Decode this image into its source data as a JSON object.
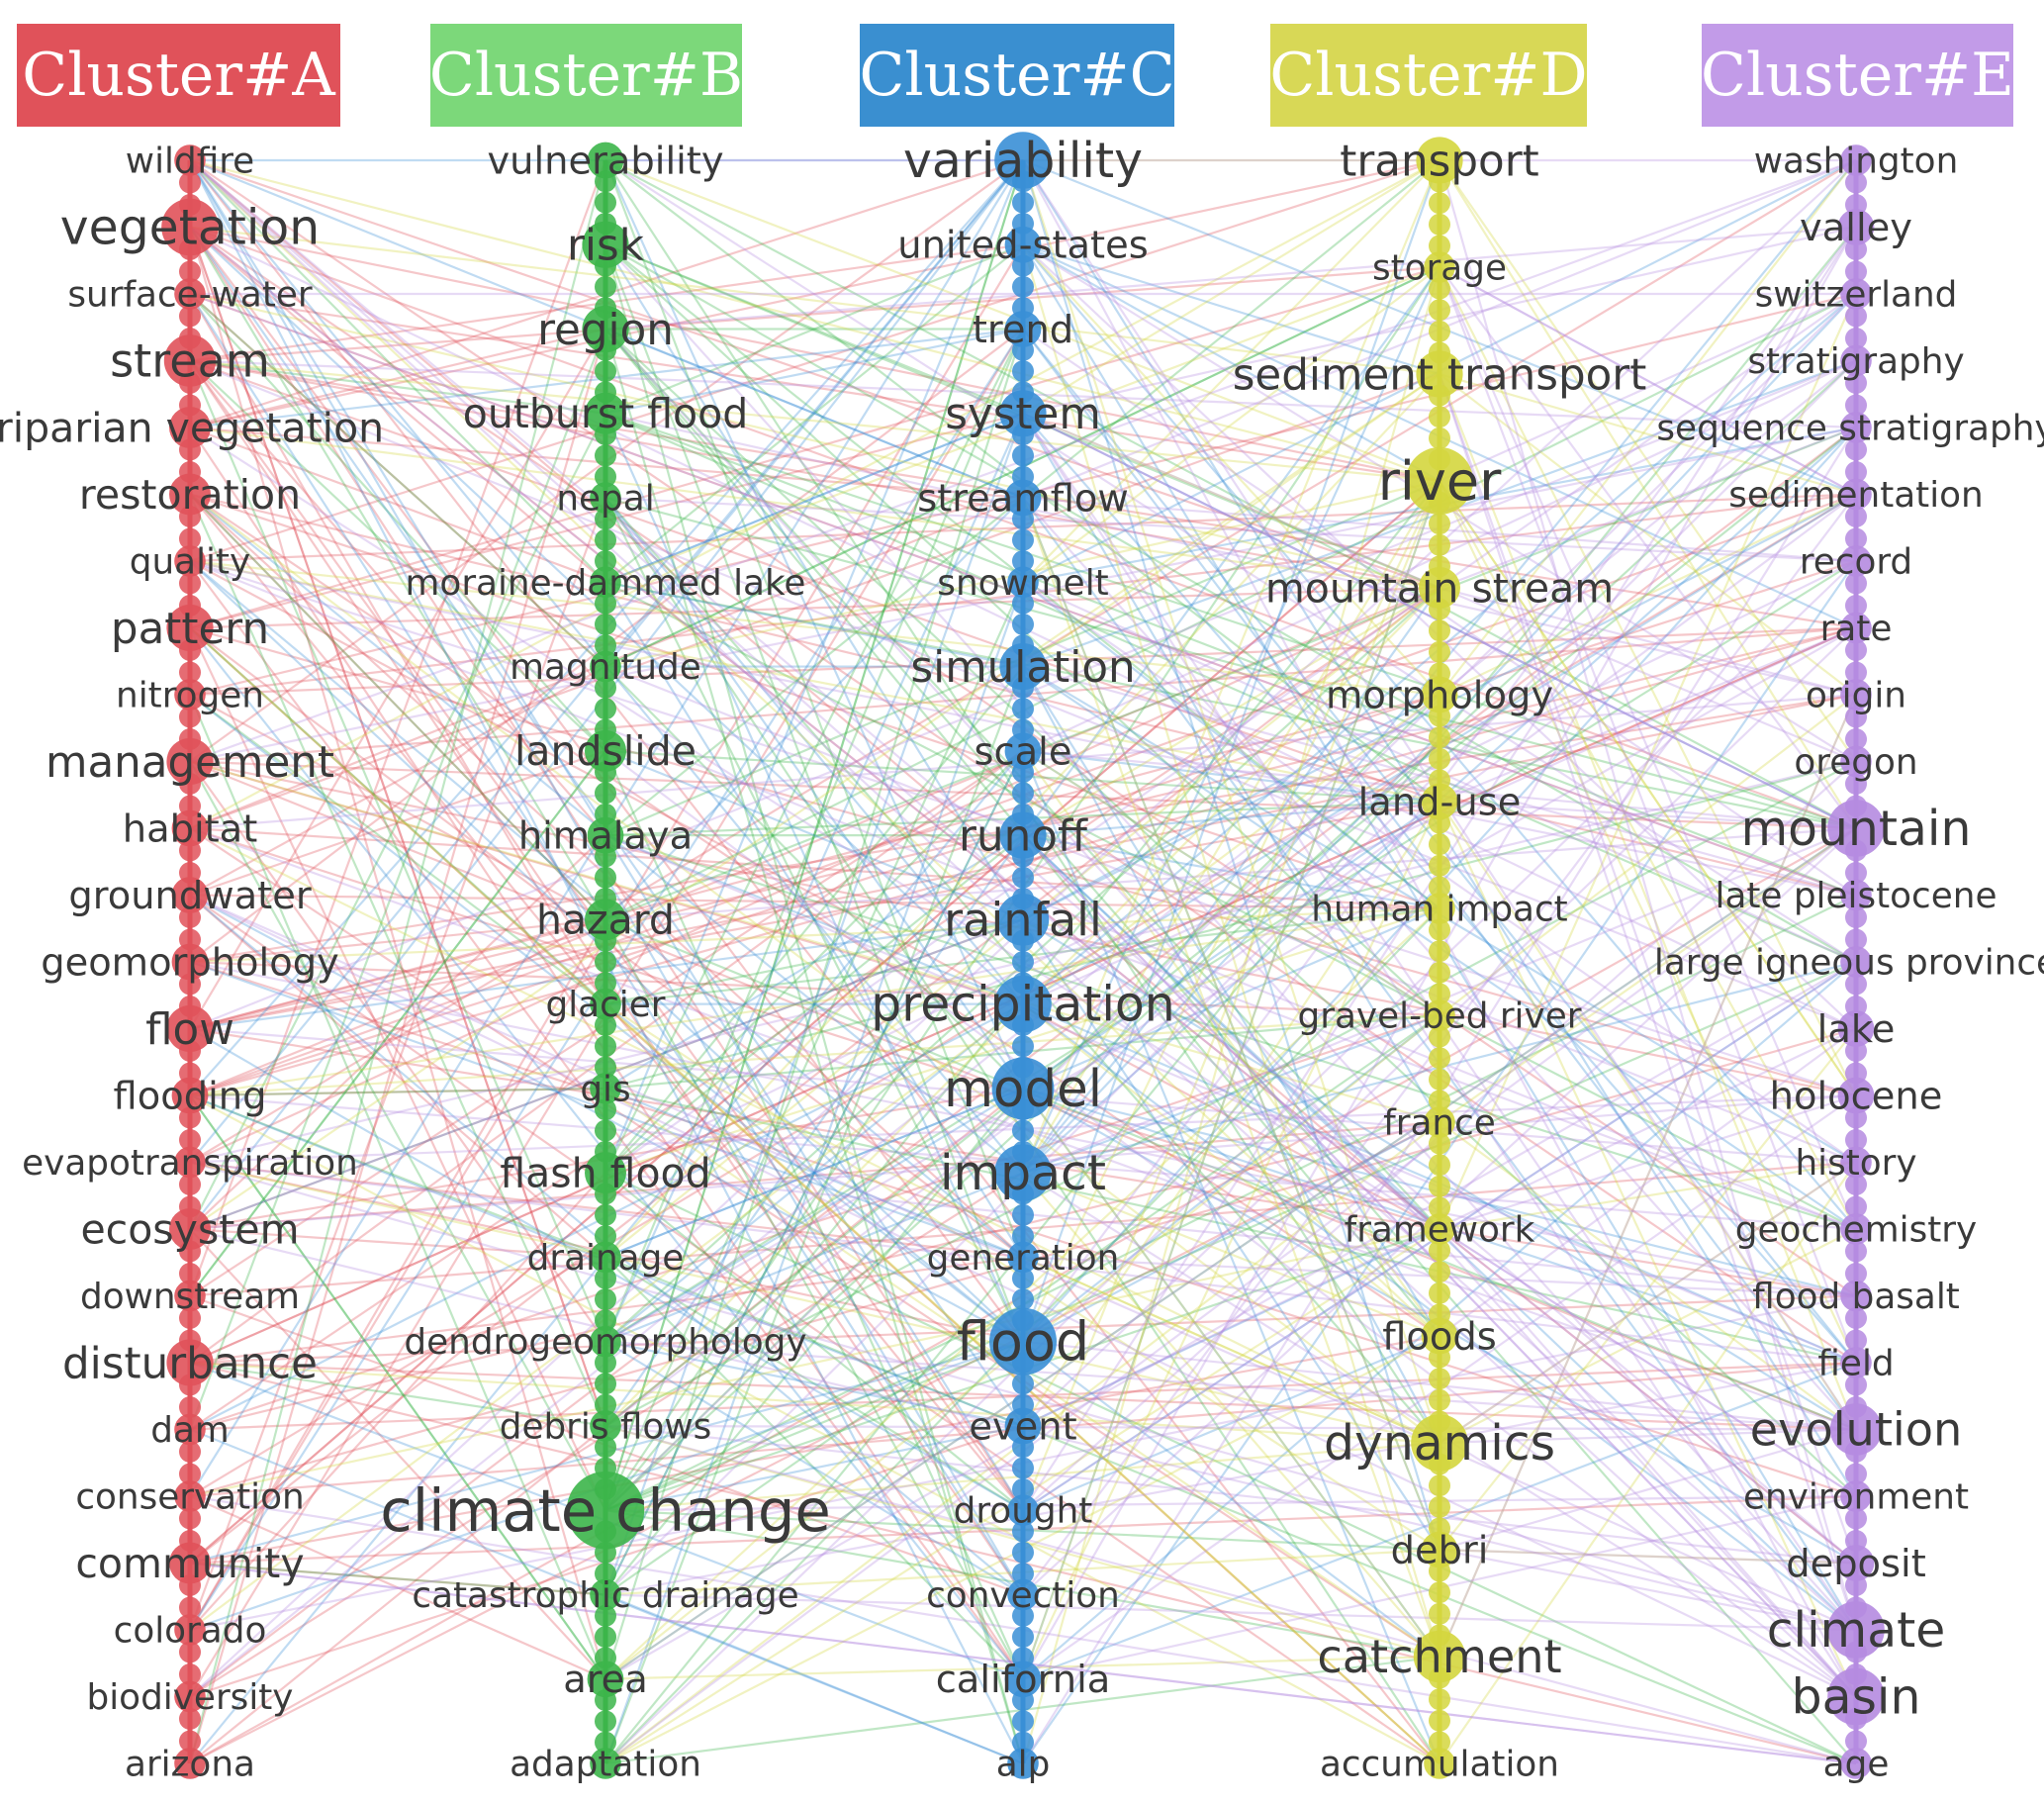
{
  "diagram": {
    "clusters": [
      {
        "id": "A",
        "label": "Cluster#A",
        "color": "#e0525a",
        "terms": [
          {
            "label": "wildfire",
            "w": 3
          },
          {
            "label": "vegetation",
            "w": 8
          },
          {
            "label": "surface-water",
            "w": 3
          },
          {
            "label": "stream",
            "w": 7
          },
          {
            "label": "riparian vegetation",
            "w": 5
          },
          {
            "label": "restoration",
            "w": 5
          },
          {
            "label": "quality",
            "w": 3
          },
          {
            "label": "pattern",
            "w": 6
          },
          {
            "label": "nitrogen",
            "w": 3
          },
          {
            "label": "management",
            "w": 6
          },
          {
            "label": "habitat",
            "w": 4
          },
          {
            "label": "groundwater",
            "w": 4
          },
          {
            "label": "geomorphology",
            "w": 4
          },
          {
            "label": "flow",
            "w": 6
          },
          {
            "label": "flooding",
            "w": 4
          },
          {
            "label": "evapotranspiration",
            "w": 3
          },
          {
            "label": "ecosystem",
            "w": 5
          },
          {
            "label": "downstream",
            "w": 3
          },
          {
            "label": "disturbance",
            "w": 6
          },
          {
            "label": "dam",
            "w": 3
          },
          {
            "label": "conservation",
            "w": 3
          },
          {
            "label": "community",
            "w": 5
          },
          {
            "label": "colorado",
            "w": 3
          },
          {
            "label": "biodiversity",
            "w": 3
          },
          {
            "label": "arizona",
            "w": 3
          }
        ]
      },
      {
        "id": "B",
        "label": "Cluster#B",
        "color": "#3cb54a",
        "terms": [
          {
            "label": "vulnerability",
            "w": 4
          },
          {
            "label": "risk",
            "w": 6
          },
          {
            "label": "region",
            "w": 6
          },
          {
            "label": "outburst flood",
            "w": 5
          },
          {
            "label": "nepal",
            "w": 3
          },
          {
            "label": "moraine-dammed lake",
            "w": 3
          },
          {
            "label": "magnitude",
            "w": 3
          },
          {
            "label": "landslide",
            "w": 5
          },
          {
            "label": "himalaya",
            "w": 4
          },
          {
            "label": "hazard",
            "w": 5
          },
          {
            "label": "glacier",
            "w": 3
          },
          {
            "label": "gis",
            "w": 3
          },
          {
            "label": "flash flood",
            "w": 5
          },
          {
            "label": "drainage",
            "w": 3
          },
          {
            "label": "dendrogeomorphology",
            "w": 3
          },
          {
            "label": "debris flows",
            "w": 3
          },
          {
            "label": "climate change",
            "w": 12
          },
          {
            "label": "catastrophic drainage",
            "w": 3
          },
          {
            "label": "area",
            "w": 4
          },
          {
            "label": "adaptation",
            "w": 3
          }
        ]
      },
      {
        "id": "C",
        "label": "Cluster#C",
        "color": "#3a8fd6",
        "terms": [
          {
            "label": "variability",
            "w": 8
          },
          {
            "label": "united-states",
            "w": 4
          },
          {
            "label": "trend",
            "w": 4
          },
          {
            "label": "system",
            "w": 6
          },
          {
            "label": "streamflow",
            "w": 4
          },
          {
            "label": "snowmelt",
            "w": 3
          },
          {
            "label": "simulation",
            "w": 6
          },
          {
            "label": "scale",
            "w": 4
          },
          {
            "label": "runoff",
            "w": 6
          },
          {
            "label": "rainfall",
            "w": 7
          },
          {
            "label": "precipitation",
            "w": 8
          },
          {
            "label": "model",
            "w": 9
          },
          {
            "label": "impact",
            "w": 8
          },
          {
            "label": "generation",
            "w": 3
          },
          {
            "label": "flood",
            "w": 10
          },
          {
            "label": "event",
            "w": 4
          },
          {
            "label": "drought",
            "w": 3
          },
          {
            "label": "convection",
            "w": 3
          },
          {
            "label": "california",
            "w": 4
          },
          {
            "label": "alp",
            "w": 3
          }
        ]
      },
      {
        "id": "D",
        "label": "Cluster#D",
        "color": "#d4d63e",
        "terms": [
          {
            "label": "transport",
            "w": 6
          },
          {
            "label": "storage",
            "w": 3
          },
          {
            "label": "sediment transport",
            "w": 6
          },
          {
            "label": "river",
            "w": 10
          },
          {
            "label": "mountain stream",
            "w": 5
          },
          {
            "label": "morphology",
            "w": 4
          },
          {
            "label": "land-use",
            "w": 4
          },
          {
            "label": "human impact",
            "w": 3
          },
          {
            "label": "gravel-bed river",
            "w": 3
          },
          {
            "label": "france",
            "w": 3
          },
          {
            "label": "framework",
            "w": 3
          },
          {
            "label": "floods",
            "w": 4
          },
          {
            "label": "dynamics",
            "w": 8
          },
          {
            "label": "debri",
            "w": 4
          },
          {
            "label": "catchment",
            "w": 7
          },
          {
            "label": "accumulation",
            "w": 3
          }
        ]
      },
      {
        "id": "E",
        "label": "Cluster#E",
        "color": "#b58be0",
        "terms": [
          {
            "label": "washington",
            "w": 3
          },
          {
            "label": "valley",
            "w": 4
          },
          {
            "label": "switzerland",
            "w": 3
          },
          {
            "label": "stratigraphy",
            "w": 3
          },
          {
            "label": "sequence stratigraphy",
            "w": 3
          },
          {
            "label": "sedimentation",
            "w": 3
          },
          {
            "label": "record",
            "w": 3
          },
          {
            "label": "rate",
            "w": 3
          },
          {
            "label": "origin",
            "w": 3
          },
          {
            "label": "oregon",
            "w": 3
          },
          {
            "label": "mountain",
            "w": 8
          },
          {
            "label": "late pleistocene",
            "w": 3
          },
          {
            "label": "large igneous province",
            "w": 3
          },
          {
            "label": "lake",
            "w": 4
          },
          {
            "label": "holocene",
            "w": 4
          },
          {
            "label": "history",
            "w": 3
          },
          {
            "label": "geochemistry",
            "w": 3
          },
          {
            "label": "flood basalt",
            "w": 3
          },
          {
            "label": "field",
            "w": 3
          },
          {
            "label": "evolution",
            "w": 7
          },
          {
            "label": "environment",
            "w": 3
          },
          {
            "label": "deposit",
            "w": 4
          },
          {
            "label": "climate",
            "w": 8
          },
          {
            "label": "basin",
            "w": 8
          },
          {
            "label": "age",
            "w": 3
          }
        ]
      }
    ]
  }
}
